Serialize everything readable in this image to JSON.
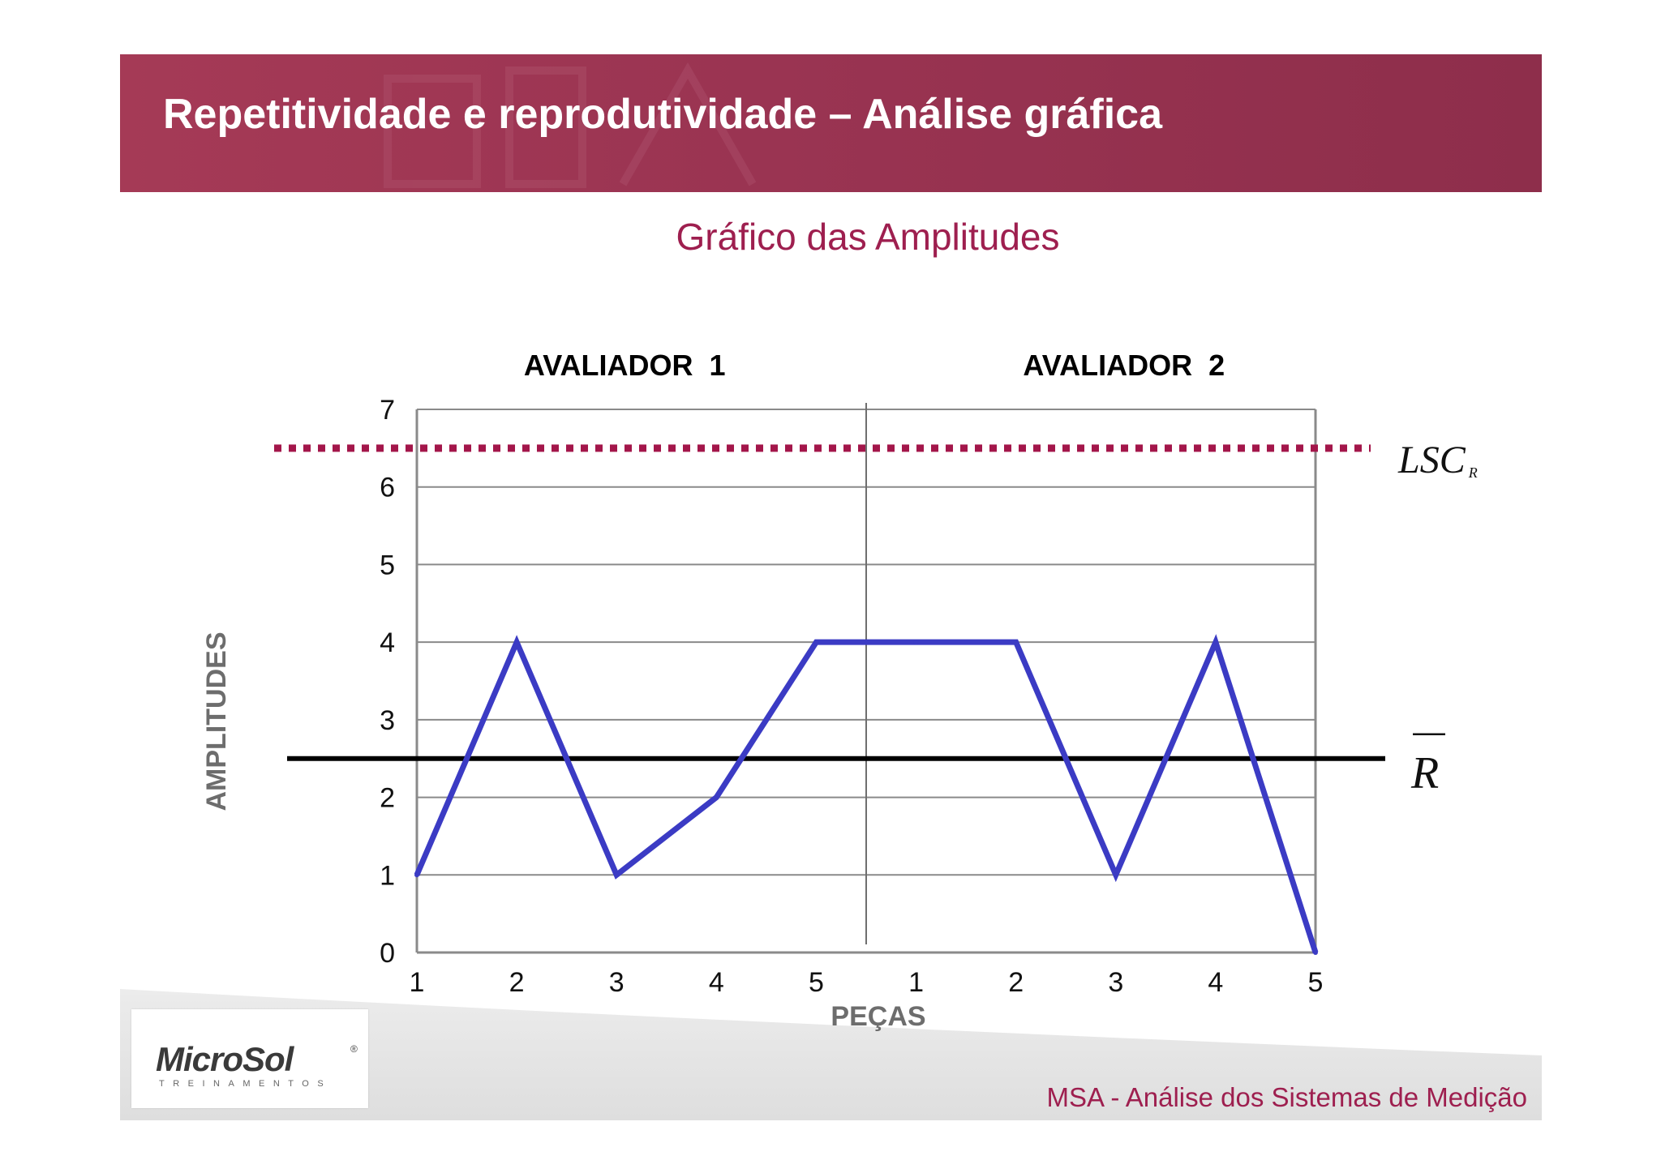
{
  "header": {
    "title": "Repetitividade e reprodutividade – Análise gráfica"
  },
  "colors": {
    "header": "#9a3452",
    "accent": "#9e1f4f",
    "series": "#3b3bc4",
    "mean_line": "#000000",
    "ucl_line": "#a3164a",
    "grid": "#8a8a8a"
  },
  "chart_data": {
    "type": "line",
    "title": "Gráfico das Amplitudes",
    "xlabel": "PEÇAS",
    "ylabel": "AMPLITUDES",
    "ylim": [
      0,
      7
    ],
    "yticks": [
      "0",
      "1",
      "2",
      "3",
      "4",
      "5",
      "6",
      "7"
    ],
    "grid": true,
    "groups": [
      "AVALIADOR  1",
      "AVALIADOR  2"
    ],
    "categories": [
      "1",
      "2",
      "3",
      "4",
      "5",
      "1",
      "2",
      "3",
      "4",
      "5"
    ],
    "series": [
      {
        "values": [
          1,
          4,
          1,
          2,
          4,
          4,
          4,
          1,
          4,
          0
        ]
      }
    ],
    "reference_lines": [
      {
        "label": "LSC",
        "subscript": "R",
        "value": 6.5,
        "style": "dotted"
      },
      {
        "label": "R",
        "overbar": true,
        "value": 2.5,
        "style": "solid"
      }
    ]
  },
  "footer": {
    "logo_name": "MicroSol",
    "logo_reg": "®",
    "logo_sub": "TREINAMENTOS",
    "text": "MSA - Análise dos Sistemas de Medição"
  }
}
